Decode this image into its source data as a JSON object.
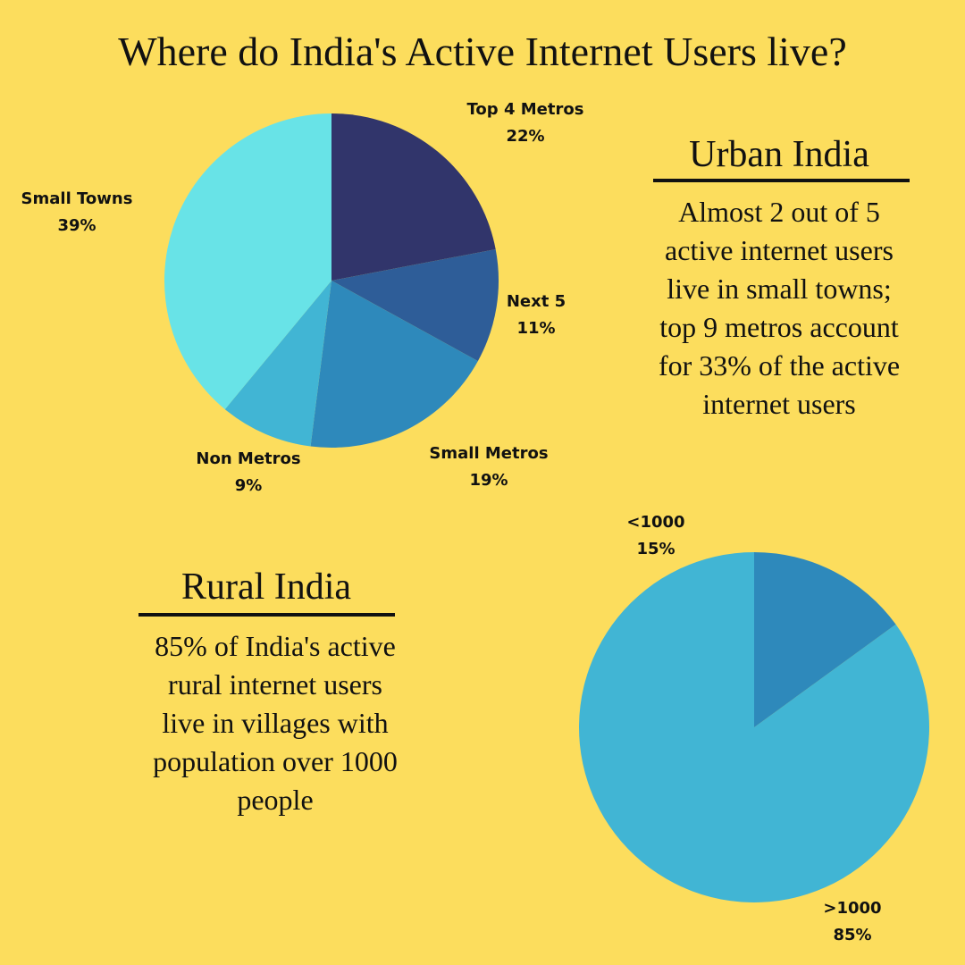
{
  "colors": {
    "background": "#FCDD5D",
    "text": "#111111"
  },
  "title": "Where do India's Active Internet Users live?",
  "urban": {
    "heading": "Urban India",
    "body_lines": [
      "Almost 2 out of 5",
      "active internet users",
      "live in small towns;",
      "top 9 metros account",
      "for 33% of the active",
      "internet users"
    ]
  },
  "rural": {
    "heading": "Rural India",
    "body_lines": [
      "85% of India's active",
      "rural internet users",
      "live in villages with",
      "population over 1000",
      "people"
    ]
  },
  "chart_data": [
    {
      "type": "pie",
      "slices": [
        {
          "label": "Top 4 Metros",
          "value": 22,
          "value_label": "22%",
          "color": "#31356B"
        },
        {
          "label": "Next 5",
          "value": 11,
          "value_label": "11%",
          "color": "#2E5D98"
        },
        {
          "label": "Small Metros",
          "value": 19,
          "value_label": "19%",
          "color": "#2E89BB"
        },
        {
          "label": "Non Metros",
          "value": 9,
          "value_label": "9%",
          "color": "#41B5D4"
        },
        {
          "label": "Small Towns",
          "value": 39,
          "value_label": "39%",
          "color": "#68E3E7"
        }
      ]
    },
    {
      "type": "pie",
      "slices": [
        {
          "label": ">1000",
          "value": 85,
          "value_label": "85%",
          "color": "#41B5D4"
        },
        {
          "label": "<1000",
          "value": 15,
          "value_label": "15%",
          "color": "#2E89BB"
        }
      ]
    }
  ]
}
